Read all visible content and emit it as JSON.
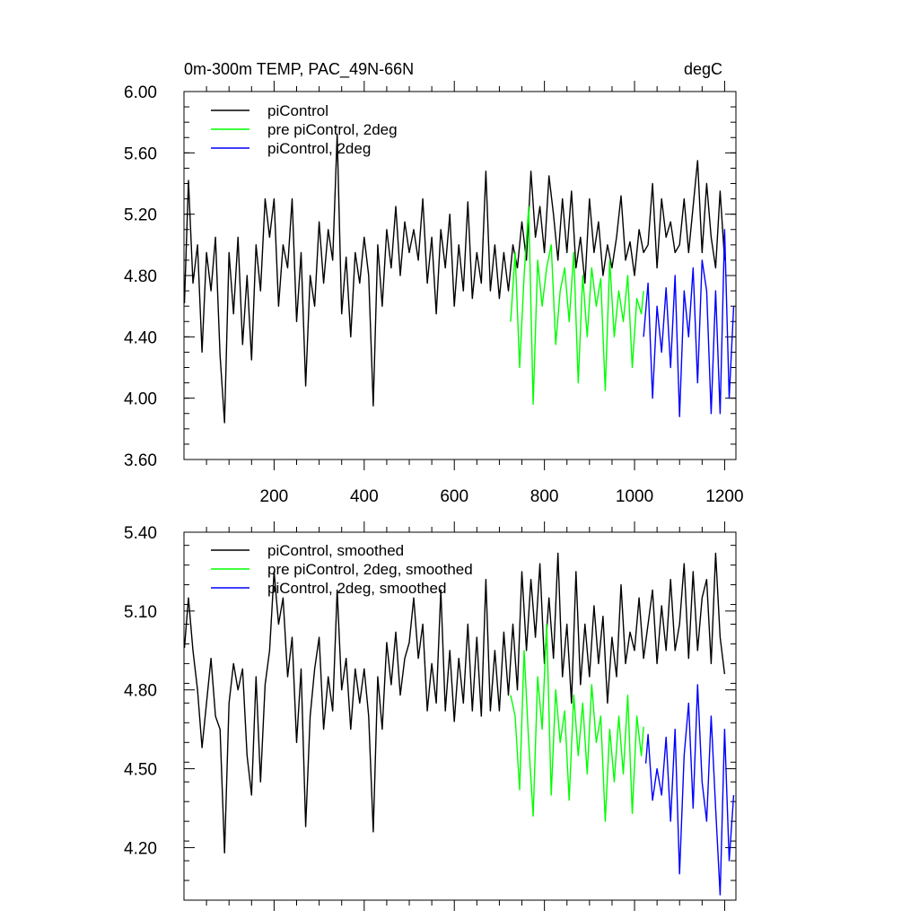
{
  "chart_data": [
    {
      "type": "line",
      "title_left": "0m-300m TEMP, PAC_49N-66N",
      "title_right": "degC",
      "xlabel": "",
      "ylabel": "",
      "xlim": [
        0,
        1225
      ],
      "ylim": [
        3.6,
        6.0
      ],
      "x_tick_labels": [
        "200",
        "400",
        "600",
        "800",
        "1000",
        "1200"
      ],
      "x_ticks": [
        200,
        400,
        600,
        800,
        1000,
        1200
      ],
      "y_tick_labels": [
        "3.60",
        "4.00",
        "4.40",
        "4.80",
        "5.20",
        "5.60",
        "6.00"
      ],
      "y_ticks": [
        3.6,
        4.0,
        4.4,
        4.8,
        5.2,
        5.6,
        6.0
      ],
      "legend_position": "top-left",
      "series": [
        {
          "name": "piControl",
          "color": "#000000",
          "x": [
            1,
            10,
            20,
            30,
            40,
            50,
            60,
            70,
            80,
            90,
            100,
            110,
            120,
            130,
            140,
            150,
            160,
            170,
            180,
            190,
            200,
            210,
            220,
            230,
            240,
            250,
            260,
            270,
            280,
            290,
            300,
            310,
            320,
            330,
            340,
            350,
            360,
            370,
            380,
            390,
            400,
            410,
            420,
            430,
            440,
            450,
            460,
            470,
            480,
            490,
            500,
            510,
            520,
            530,
            540,
            550,
            560,
            570,
            580,
            590,
            600,
            610,
            620,
            630,
            640,
            650,
            660,
            670,
            680,
            690,
            700,
            710,
            720,
            730,
            740,
            750,
            760,
            770,
            780,
            790,
            800,
            810,
            820,
            830,
            840,
            850,
            860,
            870,
            880,
            890,
            900,
            910,
            920,
            930,
            940,
            950,
            960,
            970,
            980,
            990,
            1000,
            1010,
            1020,
            1030,
            1040,
            1050,
            1060,
            1070,
            1080,
            1090,
            1100,
            1110,
            1120,
            1130,
            1140,
            1150,
            1160,
            1170,
            1180,
            1190,
            1200
          ],
          "values": [
            4.62,
            5.42,
            4.75,
            5.0,
            4.3,
            4.95,
            4.7,
            5.05,
            4.28,
            3.84,
            4.95,
            4.55,
            5.05,
            4.35,
            4.8,
            4.25,
            5.0,
            4.7,
            5.3,
            5.05,
            5.3,
            4.6,
            5.0,
            4.85,
            5.3,
            4.5,
            4.95,
            4.08,
            4.8,
            4.6,
            5.15,
            4.75,
            5.1,
            4.9,
            5.72,
            4.55,
            4.92,
            4.4,
            4.95,
            4.75,
            5.05,
            4.8,
            3.95,
            5.0,
            4.6,
            5.1,
            4.85,
            5.25,
            4.8,
            5.15,
            4.95,
            5.1,
            4.9,
            5.3,
            4.75,
            5.05,
            4.55,
            5.1,
            4.85,
            5.2,
            4.6,
            5.0,
            4.7,
            5.28,
            4.65,
            4.95,
            4.75,
            5.48,
            4.7,
            5.0,
            4.65,
            4.95,
            4.7,
            5.0,
            4.85,
            5.15,
            4.9,
            5.48,
            5.05,
            5.25,
            4.95,
            5.45,
            5.2,
            4.9,
            5.3,
            4.95,
            5.35,
            4.85,
            5.05,
            4.75,
            5.3,
            4.95,
            5.15,
            4.8,
            5.0,
            4.85,
            5.05,
            5.32,
            4.9,
            5.02,
            4.8,
            5.1,
            4.95,
            5.0,
            5.4,
            4.85,
            5.3,
            5.05,
            5.15,
            4.95,
            5.0,
            5.3,
            4.95,
            5.25,
            5.55,
            4.95,
            5.4,
            5.05,
            4.85,
            5.35,
            4.9
          ]
        },
        {
          "name": "pre piControl, 2deg",
          "color": "#00ff00",
          "x": [
            725,
            735,
            745,
            755,
            765,
            775,
            785,
            795,
            805,
            815,
            825,
            835,
            845,
            855,
            865,
            875,
            885,
            895,
            905,
            915,
            925,
            935,
            945,
            955,
            965,
            975,
            985,
            995,
            1005,
            1015,
            1020
          ],
          "values": [
            4.5,
            4.95,
            4.2,
            4.8,
            5.25,
            3.96,
            4.9,
            4.6,
            4.85,
            5.0,
            4.35,
            4.7,
            4.85,
            4.5,
            4.95,
            4.1,
            4.8,
            4.4,
            4.85,
            4.6,
            4.78,
            4.05,
            4.9,
            4.4,
            4.7,
            4.5,
            4.8,
            4.2,
            4.65,
            4.55,
            4.7
          ]
        },
        {
          "name": "piControl, 2deg",
          "color": "#0000ff",
          "x": [
            1020,
            1030,
            1040,
            1050,
            1060,
            1070,
            1080,
            1090,
            1100,
            1110,
            1120,
            1130,
            1140,
            1150,
            1160,
            1170,
            1180,
            1190,
            1200,
            1210,
            1220
          ],
          "values": [
            4.4,
            4.75,
            4.0,
            4.6,
            4.3,
            4.72,
            4.2,
            4.8,
            3.88,
            4.7,
            4.4,
            4.85,
            4.1,
            4.9,
            4.7,
            3.9,
            4.7,
            3.9,
            5.1,
            4.0,
            4.6
          ]
        }
      ]
    },
    {
      "type": "line",
      "title_left": "",
      "title_right": "",
      "xlabel": "",
      "ylabel": "",
      "xlim": [
        0,
        1225
      ],
      "ylim": [
        4.0,
        5.4
      ],
      "x_ticks": [
        200,
        400,
        600,
        800,
        1000,
        1200
      ],
      "y_tick_labels": [
        "4.20",
        "4.50",
        "4.80",
        "5.10",
        "5.40"
      ],
      "y_ticks": [
        4.2,
        4.5,
        4.8,
        5.1,
        5.4
      ],
      "legend_position": "top-left",
      "series": [
        {
          "name": "piControl, smoothed",
          "color": "#000000",
          "x": [
            1,
            10,
            20,
            30,
            40,
            50,
            60,
            70,
            80,
            90,
            100,
            110,
            120,
            130,
            140,
            150,
            160,
            170,
            180,
            190,
            200,
            210,
            220,
            230,
            240,
            250,
            260,
            270,
            280,
            290,
            300,
            310,
            320,
            330,
            340,
            350,
            360,
            370,
            380,
            390,
            400,
            410,
            420,
            430,
            440,
            450,
            460,
            470,
            480,
            490,
            500,
            510,
            520,
            530,
            540,
            550,
            560,
            570,
            580,
            590,
            600,
            610,
            620,
            630,
            640,
            650,
            660,
            670,
            680,
            690,
            700,
            710,
            720,
            730,
            740,
            750,
            760,
            770,
            780,
            790,
            800,
            810,
            820,
            830,
            840,
            850,
            860,
            870,
            880,
            890,
            900,
            910,
            920,
            930,
            940,
            950,
            960,
            970,
            980,
            990,
            1000,
            1010,
            1020,
            1030,
            1040,
            1050,
            1060,
            1070,
            1080,
            1090,
            1100,
            1110,
            1120,
            1130,
            1140,
            1150,
            1160,
            1170,
            1180,
            1190,
            1200
          ],
          "values": [
            4.96,
            5.15,
            4.95,
            4.8,
            4.58,
            4.75,
            4.92,
            4.7,
            4.65,
            4.18,
            4.75,
            4.9,
            4.8,
            4.88,
            4.55,
            4.4,
            4.85,
            4.45,
            4.82,
            4.95,
            5.25,
            5.05,
            5.15,
            4.85,
            5.0,
            4.6,
            4.88,
            4.28,
            4.7,
            4.88,
            5.0,
            4.65,
            4.85,
            4.72,
            5.18,
            4.8,
            4.92,
            4.65,
            4.88,
            4.75,
            4.88,
            4.7,
            4.26,
            4.85,
            4.65,
            4.98,
            4.82,
            5.02,
            4.78,
            4.92,
            4.98,
            5.15,
            4.92,
            5.05,
            4.72,
            4.9,
            4.75,
            5.18,
            4.72,
            4.95,
            4.68,
            4.92,
            4.75,
            5.05,
            4.72,
            5.0,
            4.7,
            5.22,
            4.72,
            4.95,
            4.72,
            5.02,
            4.78,
            5.05,
            4.8,
            5.25,
            4.95,
            5.22,
            5.0,
            5.28,
            4.9,
            5.15,
            4.92,
            5.32,
            4.85,
            5.05,
            4.75,
            5.25,
            4.82,
            5.05,
            4.85,
            5.12,
            4.9,
            5.08,
            4.75,
            5.0,
            4.85,
            5.2,
            4.9,
            5.02,
            4.95,
            5.15,
            4.92,
            5.05,
            5.18,
            4.9,
            5.12,
            4.95,
            5.22,
            4.95,
            5.05,
            5.28,
            4.92,
            5.25,
            4.95,
            5.15,
            5.22,
            4.9,
            5.32,
            5.0,
            4.86
          ]
        },
        {
          "name": "pre piControl, 2deg, smoothed",
          "color": "#00ff00",
          "x": [
            725,
            735,
            745,
            755,
            765,
            775,
            785,
            795,
            805,
            815,
            825,
            835,
            845,
            855,
            865,
            875,
            885,
            895,
            905,
            915,
            925,
            935,
            945,
            955,
            965,
            975,
            985,
            995,
            1005,
            1015,
            1020
          ],
          "values": [
            4.78,
            4.7,
            4.42,
            4.95,
            4.6,
            4.32,
            4.85,
            4.65,
            5.05,
            4.4,
            4.8,
            4.6,
            4.72,
            4.38,
            4.78,
            4.55,
            4.75,
            4.48,
            4.82,
            4.6,
            4.7,
            4.3,
            4.65,
            4.45,
            4.7,
            4.48,
            4.78,
            4.33,
            4.7,
            4.55,
            4.66
          ]
        },
        {
          "name": "piControl, 2deg, smoothed",
          "color": "#0000ff",
          "x": [
            1025,
            1030,
            1040,
            1050,
            1060,
            1070,
            1080,
            1090,
            1100,
            1110,
            1120,
            1130,
            1140,
            1150,
            1160,
            1170,
            1180,
            1190,
            1200,
            1210,
            1220
          ],
          "values": [
            4.52,
            4.63,
            4.38,
            4.5,
            4.4,
            4.62,
            4.3,
            4.65,
            4.1,
            4.55,
            4.75,
            4.35,
            4.82,
            4.45,
            4.3,
            4.7,
            4.35,
            4.02,
            4.65,
            4.15,
            4.4
          ]
        }
      ]
    }
  ]
}
